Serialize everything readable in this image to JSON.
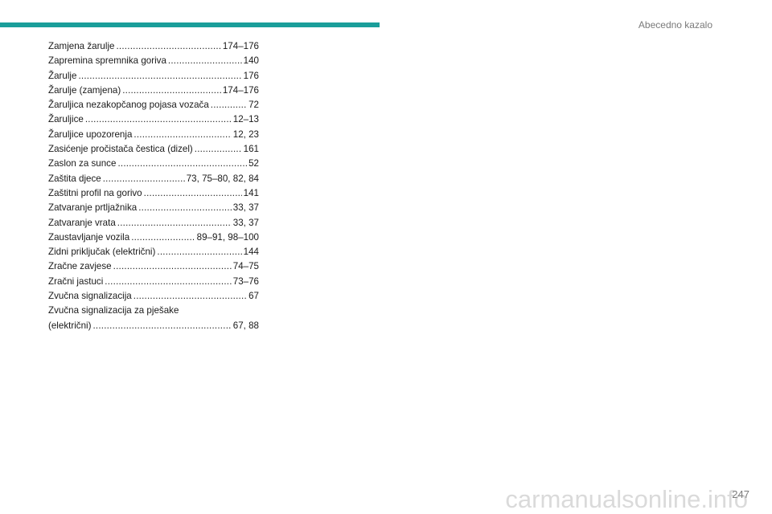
{
  "header": {
    "section_title": "Abecedno kazalo",
    "accent_color": "#1a9e9a"
  },
  "index": {
    "entries": [
      {
        "term": "Zamjena žarulje",
        "pages": "174–176"
      },
      {
        "term": "Zapremina spremnika goriva",
        "pages": "140"
      },
      {
        "term": "Žarulje",
        "pages": "176"
      },
      {
        "term": "Žarulje (zamjena)",
        "pages": "174–176"
      },
      {
        "term": "Žaruljica nezakopčanog pojasa vozača",
        "pages": "72"
      },
      {
        "term": "Žaruljice",
        "pages": "12–13"
      },
      {
        "term": "Žaruljice upozorenja",
        "pages": "12, 23"
      },
      {
        "term": "Zasićenje pročistača čestica (dizel)",
        "pages": "161"
      },
      {
        "term": "Zaslon za sunce",
        "pages": "52"
      },
      {
        "term": "Zaštita djece",
        "pages": "73, 75–80, 82, 84"
      },
      {
        "term": "Zaštitni profil na gorivo",
        "pages": "141"
      },
      {
        "term": "Zatvaranje prtljažnika",
        "pages": "33, 37"
      },
      {
        "term": "Zatvaranje vrata",
        "pages": "33, 37"
      },
      {
        "term": "Zaustavljanje vozila",
        "pages": "89–91, 98–100"
      },
      {
        "term": "Zidni priključak (električni)",
        "pages": "144"
      },
      {
        "term": "Zračne zavjese",
        "pages": "74–75"
      },
      {
        "term": "Zračni jastuci",
        "pages": "73–76"
      },
      {
        "term": "Zvučna signalizacija",
        "pages": "67"
      }
    ],
    "wrapped_entry": {
      "term_line1": "Zvučna signalizacija za pješake",
      "term_line2": "(električni)",
      "pages": "67, 88"
    }
  },
  "footer": {
    "page_number": "247",
    "watermark": "carmanualsonline.info"
  }
}
